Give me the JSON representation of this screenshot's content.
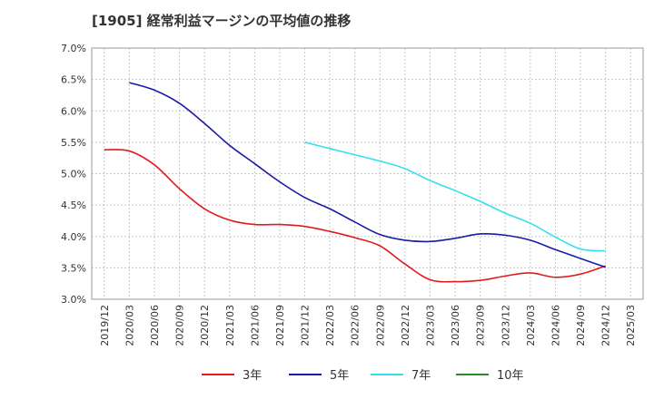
{
  "title": "[1905]  経常利益マージンの平均値の推移",
  "chart_data": {
    "type": "line",
    "title": "[1905]  経常利益マージンの平均値の推移",
    "xlabel": "",
    "ylabel": "",
    "ylim": [
      3.0,
      7.0
    ],
    "y_ticks": [
      "3.0%",
      "3.5%",
      "4.0%",
      "4.5%",
      "5.0%",
      "5.5%",
      "6.0%",
      "6.5%",
      "7.0%"
    ],
    "x_ticks": [
      "2019/12",
      "2020/03",
      "2020/06",
      "2020/09",
      "2020/12",
      "2021/03",
      "2021/06",
      "2021/09",
      "2021/12",
      "2022/03",
      "2022/06",
      "2022/09",
      "2022/12",
      "2023/03",
      "2023/06",
      "2023/09",
      "2023/12",
      "2024/03",
      "2024/06",
      "2024/09",
      "2024/12",
      "2025/03"
    ],
    "grid": true,
    "legend_position": "bottom",
    "series": [
      {
        "name": "3年",
        "color": "#e31a1c",
        "x": [
          "2019/12",
          "2020/03",
          "2020/06",
          "2020/09",
          "2020/12",
          "2021/03",
          "2021/06",
          "2021/09",
          "2021/12",
          "2022/03",
          "2022/06",
          "2022/09",
          "2022/12",
          "2023/03",
          "2023/06",
          "2023/09",
          "2023/12",
          "2024/03",
          "2024/06",
          "2024/09",
          "2024/12"
        ],
        "values": [
          5.38,
          5.36,
          5.14,
          4.76,
          4.44,
          4.26,
          4.19,
          4.19,
          4.16,
          4.08,
          3.98,
          3.85,
          3.56,
          3.31,
          3.28,
          3.3,
          3.37,
          3.42,
          3.35,
          3.4,
          3.53
        ]
      },
      {
        "name": "5年",
        "color": "#1a1aa8",
        "x": [
          "2020/03",
          "2020/06",
          "2020/09",
          "2020/12",
          "2021/03",
          "2021/06",
          "2021/09",
          "2021/12",
          "2022/03",
          "2022/06",
          "2022/09",
          "2022/12",
          "2023/03",
          "2023/06",
          "2023/09",
          "2023/12",
          "2024/03",
          "2024/06",
          "2024/09",
          "2024/12"
        ],
        "values": [
          6.45,
          6.33,
          6.12,
          5.8,
          5.45,
          5.16,
          4.87,
          4.62,
          4.44,
          4.23,
          4.03,
          3.94,
          3.92,
          3.97,
          4.04,
          4.02,
          3.94,
          3.79,
          3.65,
          3.51
        ]
      },
      {
        "name": "7年",
        "color": "#33e0f0",
        "x": [
          "2021/12",
          "2022/03",
          "2022/06",
          "2022/09",
          "2022/12",
          "2023/03",
          "2023/06",
          "2023/09",
          "2023/12",
          "2024/03",
          "2024/06",
          "2024/09",
          "2024/12"
        ],
        "values": [
          5.5,
          5.4,
          5.3,
          5.2,
          5.08,
          4.89,
          4.73,
          4.56,
          4.37,
          4.21,
          3.99,
          3.8,
          3.77
        ]
      },
      {
        "name": "10年",
        "color": "#2a8a2a",
        "x": [],
        "values": []
      }
    ]
  }
}
